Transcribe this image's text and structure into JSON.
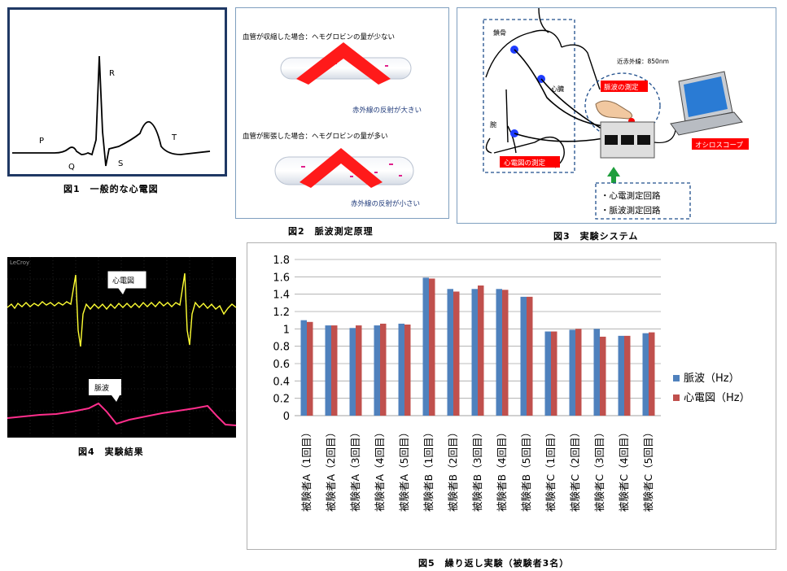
{
  "fig1": {
    "caption": "図1　一般的な心電図",
    "labels": {
      "p": "P",
      "q": "Q",
      "r": "R",
      "s": "S",
      "t": "T"
    }
  },
  "fig2": {
    "caption": "図2　脈波測定原理",
    "top_title": "血管が収縮した場合：ヘモグロビンの量が少ない",
    "top_note": "赤外線の反射が大きい",
    "bottom_title": "血管が膨張した場合：ヘモグロビンの量が多い",
    "bottom_note": "赤外線の反射が小さい",
    "colors": {
      "beam": "#ff1a1a",
      "vessel": "#e6ebf2"
    }
  },
  "fig3": {
    "caption": "図3　実験システム",
    "label_clavicle": "鎖骨",
    "label_heart": "心臓",
    "label_wrist": "腕",
    "label_nir": "近赤外線：850nm",
    "label_pulse": "脈波の測定",
    "label_ecg": "心電図の測定",
    "label_scope": "オシロスコープ",
    "circuit_1": "・心電測定回路",
    "circuit_2": "・脈波測定回路",
    "colors": {
      "electrode": "#1e3cff",
      "tag": "#ff0000",
      "arrow": "#1e9e3c"
    }
  },
  "fig4": {
    "caption": "図4　実験結果",
    "brand": "LeCroy",
    "ecg_label": "心電図",
    "pulse_label": "脈波",
    "colors": {
      "ecg": "#ffff33",
      "pulse": "#ff2e8c",
      "grid": "#3a3a3a"
    }
  },
  "fig5": {
    "caption": "図5　繰り返し実験（被験者3名）"
  },
  "chart_data": {
    "type": "bar",
    "categories": [
      "被験者A（1回目）",
      "被験者A（2回目）",
      "被験者A（3回目）",
      "被験者A（4回目）",
      "被験者A（5回目）",
      "被験者B（1回目）",
      "被験者B（2回目）",
      "被験者B（3回目）",
      "被験者B（4回目）",
      "被験者B（5回目）",
      "被験者C（1回目）",
      "被験者C（2回目）",
      "被験者C（3回目）",
      "被験者C（4回目）",
      "被験者C（5回目）"
    ],
    "series": [
      {
        "name": "脈波（Hz）",
        "color": "#4f81bd",
        "values": [
          1.1,
          1.04,
          1.01,
          1.04,
          1.06,
          1.59,
          1.46,
          1.46,
          1.46,
          1.37,
          0.97,
          0.99,
          1.0,
          0.92,
          0.95
        ]
      },
      {
        "name": "心電図（Hz）",
        "color": "#c0504d",
        "values": [
          1.08,
          1.04,
          1.04,
          1.06,
          1.05,
          1.58,
          1.43,
          1.5,
          1.45,
          1.37,
          0.97,
          1.0,
          0.91,
          0.92,
          0.96
        ]
      }
    ],
    "yticks": [
      "0",
      "0.2",
      "0.4",
      "0.6",
      "0.8",
      "1",
      "1.2",
      "1.4",
      "1.6",
      "1.8"
    ],
    "ylim": [
      0,
      1.8
    ],
    "grid": true,
    "legend": "right"
  }
}
